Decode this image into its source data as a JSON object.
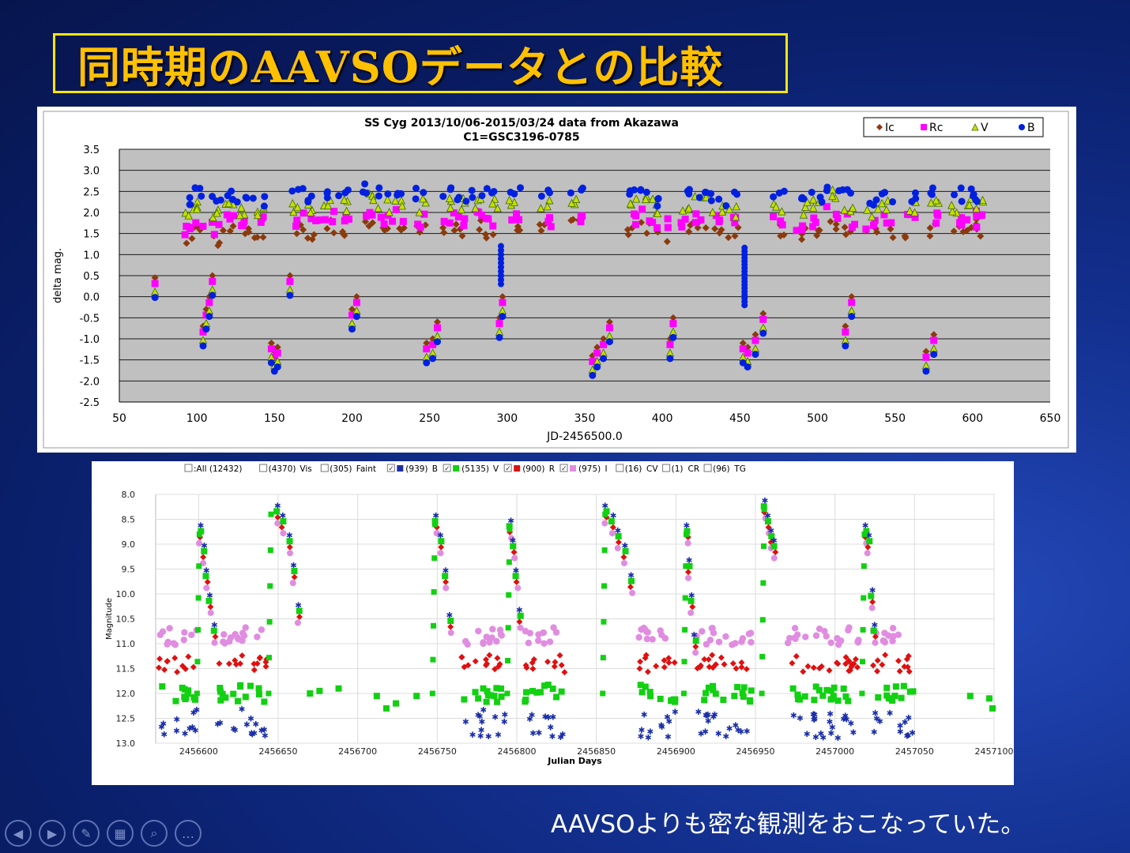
{
  "slide": {
    "title": "同時期のAAVSOデータとの比較",
    "caption": "AAVSOよりも密な観測をおこなっていた。",
    "colors": {
      "title_text": "#ffc000",
      "title_border": "#ffe600",
      "background": "#0a1f6a"
    }
  },
  "navigation": [
    {
      "name": "previous-icon",
      "glyph": "◀"
    },
    {
      "name": "next-icon",
      "glyph": "▶"
    },
    {
      "name": "pen-icon",
      "glyph": "✎"
    },
    {
      "name": "slides-icon",
      "glyph": "▦"
    },
    {
      "name": "zoom-icon",
      "glyph": "⌕"
    },
    {
      "name": "more-icon",
      "glyph": "…"
    }
  ],
  "chart_data": [
    {
      "type": "scatter",
      "title": "SS Cyg  2013/10/06-2015/03/24     data from Akazawa",
      "subtitle": "C1=GSC3196-0785",
      "xlabel": "JD-2456500.0",
      "ylabel": "delta mag.",
      "xlim": [
        50,
        650
      ],
      "ylim": [
        3.5,
        -2.5
      ],
      "y_inverted": true,
      "x_ticks": [
        "50",
        "100",
        "150",
        "200",
        "250",
        "300",
        "350",
        "400",
        "450",
        "500",
        "550",
        "600",
        "650"
      ],
      "y_ticks": [
        "-2.5",
        "-2.0",
        "-1.5",
        "-1.0",
        "-0.5",
        "0.0",
        "0.5",
        "1.0",
        "1.5",
        "2.0",
        "2.5",
        "3.0",
        "3.5"
      ],
      "grid": true,
      "legend_position": "top-right",
      "series": [
        {
          "name": "Ic",
          "color": "#8b3a0e",
          "marker": "diamond",
          "offset": 0,
          "points": [
            [
              73,
              0.45
            ],
            [
              104,
              -0.7
            ],
            [
              106,
              -0.3
            ],
            [
              108,
              0.0
            ],
            [
              110,
              0.5
            ],
            [
              148,
              -1.1
            ],
            [
              150,
              -1.3
            ],
            [
              152,
              -1.2
            ],
            [
              160,
              0.5
            ],
            [
              200,
              -0.3
            ],
            [
              203,
              0.0
            ],
            [
              248,
              -1.1
            ],
            [
              252,
              -1.0
            ],
            [
              255,
              -0.6
            ],
            [
              295,
              -0.5
            ],
            [
              297,
              0.0
            ],
            [
              355,
              -1.4
            ],
            [
              358,
              -1.2
            ],
            [
              362,
              -1.0
            ],
            [
              366,
              -0.6
            ],
            [
              405,
              -1.0
            ],
            [
              407,
              -0.5
            ],
            [
              452,
              -1.1
            ],
            [
              455,
              -1.2
            ],
            [
              460,
              -0.9
            ],
            [
              465,
              -0.4
            ],
            [
              518,
              -0.7
            ],
            [
              522,
              0.0
            ],
            [
              570,
              -1.3
            ],
            [
              575,
              -0.9
            ]
          ],
          "baseline": [
            [
              95,
              1.3
            ],
            [
              100,
              1.5
            ],
            [
              112,
              1.3
            ],
            [
              120,
              1.5
            ],
            [
              130,
              1.4
            ],
            [
              140,
              1.4
            ],
            [
              165,
              1.5
            ],
            [
              175,
              1.4
            ],
            [
              185,
              1.6
            ],
            [
              195,
              1.5
            ],
            [
              210,
              1.7
            ],
            [
              220,
              1.5
            ],
            [
              230,
              1.6
            ],
            [
              245,
              1.5
            ],
            [
              262,
              1.6
            ],
            [
              270,
              1.5
            ],
            [
              280,
              1.6
            ],
            [
              290,
              1.5
            ],
            [
              305,
              1.6
            ],
            [
              325,
              1.5
            ],
            [
              345,
              1.6
            ],
            [
              380,
              1.5
            ],
            [
              390,
              1.6
            ],
            [
              400,
              1.4
            ],
            [
              415,
              1.5
            ],
            [
              425,
              1.6
            ],
            [
              435,
              1.5
            ],
            [
              445,
              1.4
            ],
            [
              475,
              1.5
            ],
            [
              490,
              1.4
            ],
            [
              500,
              1.5
            ],
            [
              510,
              1.7
            ],
            [
              520,
              1.5
            ],
            [
              535,
              1.4
            ],
            [
              545,
              1.5
            ],
            [
              560,
              1.5
            ],
            [
              575,
              1.5
            ],
            [
              590,
              1.5
            ],
            [
              600,
              1.6
            ],
            [
              605,
              1.5
            ]
          ]
        },
        {
          "name": "Rc",
          "color": "#ff00ff",
          "marker": "square",
          "offset": 0.25
        },
        {
          "name": "V",
          "color": "#c8e000",
          "marker": "triangle",
          "offset": 0.6
        },
        {
          "name": "B",
          "color": "#0020e0",
          "marker": "circle",
          "offset": 0.85
        }
      ]
    },
    {
      "type": "scatter",
      "title": "",
      "xlabel": "Julian Days",
      "ylabel": "Magnitude",
      "xlim": [
        2456573,
        2457100
      ],
      "ylim": [
        8.0,
        13.0
      ],
      "y_inverted": true,
      "x_ticks": [
        "2456600",
        "2456650",
        "2456700",
        "2456750",
        "2456800",
        "2456850",
        "2456900",
        "2456950",
        "2457000",
        "2457050",
        "2457100"
      ],
      "y_ticks": [
        "8.0",
        "8.5",
        "9.0",
        "9.5",
        "10.0",
        "10.5",
        "11.0",
        "11.5",
        "12.0",
        "12.5",
        "13.0"
      ],
      "grid": true,
      "legend_position": "top",
      "legend": [
        {
          "label": ":All (12432)",
          "checked": false
        },
        {
          "label": "(4370)",
          "checked": false,
          "suffix": "Vis"
        },
        {
          "label": "(305)",
          "checked": false,
          "suffix": "Faint"
        },
        {
          "label": "(939)",
          "checked": true,
          "suffix": "B",
          "color": "#1a2ea8"
        },
        {
          "label": "(5135)",
          "checked": true,
          "suffix": "V",
          "color": "#12d012"
        },
        {
          "label": "(900)",
          "checked": true,
          "suffix": "R",
          "color": "#e01010"
        },
        {
          "label": "(975)",
          "checked": true,
          "suffix": "I",
          "color": "#e08ce0"
        },
        {
          "label": "(16)",
          "checked": false,
          "suffix": "CV"
        },
        {
          "label": "(1)",
          "checked": false,
          "suffix": "CR"
        },
        {
          "label": "(96)",
          "checked": false,
          "suffix": "TG"
        }
      ],
      "series": [
        {
          "name": "B",
          "color": "#1a2ea8",
          "marker": "star",
          "quiet": 12.6
        },
        {
          "name": "V",
          "color": "#12d012",
          "marker": "square",
          "quiet": 12.0
        },
        {
          "name": "R",
          "color": "#e01010",
          "marker": "diamond",
          "quiet": 11.4
        },
        {
          "name": "I",
          "color": "#e08ce0",
          "marker": "circle",
          "quiet": 10.85
        }
      ],
      "outbursts": [
        {
          "start": 2456600,
          "peak": 8.8,
          "decline": [
            [
              2456601,
              8.8
            ],
            [
              2456603,
              9.2
            ],
            [
              2456605,
              9.7
            ],
            [
              2456607,
              10.2
            ],
            [
              2456610,
              10.8
            ]
          ]
        },
        {
          "start": 2456645,
          "peak": 8.4,
          "decline": [
            [
              2456649,
              8.4
            ],
            [
              2456653,
              8.6
            ],
            [
              2456657,
              9.0
            ],
            [
              2456660,
              9.6
            ],
            [
              2456663,
              10.4
            ]
          ]
        },
        {
          "start": 2456748,
          "peak": 8.6,
          "decline": [
            [
              2456749,
              8.6
            ],
            [
              2456752,
              9.0
            ],
            [
              2456755,
              9.7
            ],
            [
              2456758,
              10.6
            ]
          ]
        },
        {
          "start": 2456795,
          "peak": 8.7,
          "decline": [
            [
              2456796,
              8.7
            ],
            [
              2456798,
              9.1
            ],
            [
              2456800,
              9.7
            ],
            [
              2456802,
              10.5
            ]
          ]
        },
        {
          "start": 2456855,
          "peak": 8.4,
          "decline": [
            [
              2456856,
              8.4
            ],
            [
              2456860,
              8.6
            ],
            [
              2456864,
              8.9
            ],
            [
              2456868,
              9.2
            ],
            [
              2456872,
              9.8
            ]
          ]
        },
        {
          "start": 2456906,
          "peak": 8.8,
          "decline": [
            [
              2456907,
              8.8
            ],
            [
              2456908,
              9.5
            ],
            [
              2456910,
              10.2
            ],
            [
              2456912,
              11.0
            ]
          ]
        },
        {
          "start": 2456955,
          "peak": 8.3,
          "decline": [
            [
              2456956,
              8.3
            ],
            [
              2456958,
              8.6
            ],
            [
              2456960,
              8.9
            ],
            [
              2456962,
              9.1
            ]
          ]
        },
        {
          "start": 2457018,
          "peak": 8.8,
          "decline": [
            [
              2457019,
              8.8
            ],
            [
              2457021,
              9.0
            ],
            [
              2457023,
              10.1
            ],
            [
              2457025,
              10.8
            ]
          ]
        }
      ],
      "quiet_ranges": [
        [
          2456575,
          2456600
        ],
        [
          2456612,
          2456643
        ],
        [
          2456765,
          2456793
        ],
        [
          2456805,
          2456830
        ],
        [
          2456876,
          2456900
        ],
        [
          2456913,
          2456948
        ],
        [
          2456970,
          2457015
        ],
        [
          2457024,
          2457050
        ]
      ],
      "sparse_v": [
        [
          2456670,
          12.0
        ],
        [
          2456676,
          11.95
        ],
        [
          2456688,
          11.9
        ],
        [
          2456712,
          12.05
        ],
        [
          2456718,
          12.3
        ],
        [
          2456724,
          12.2
        ],
        [
          2456737,
          12.05
        ],
        [
          2457085,
          12.05
        ],
        [
          2457097,
          12.1
        ],
        [
          2457099,
          12.3
        ]
      ]
    }
  ]
}
